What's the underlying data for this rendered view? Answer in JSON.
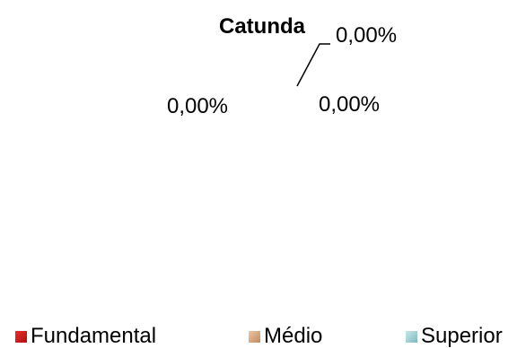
{
  "chart_data": {
    "type": "pie",
    "title": "Catunda",
    "categories": [
      "Fundamental",
      "Médio",
      "Superior"
    ],
    "values": [
      0,
      0,
      0
    ],
    "data_labels": [
      "0,00%",
      "0,00%",
      "0,00%"
    ],
    "legend_position": "bottom",
    "colors": [
      "#d01818",
      "#d8aa84",
      "#9ed0d4"
    ]
  }
}
